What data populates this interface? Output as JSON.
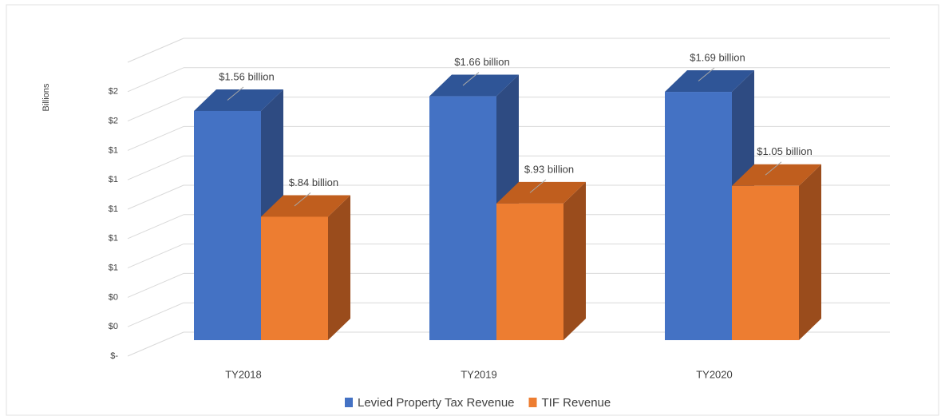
{
  "chart_data": {
    "type": "bar3d",
    "y_label": "Billions",
    "categories": [
      "TY2018",
      "TY2019",
      "TY2020"
    ],
    "series": [
      {
        "name": "Levied Property Tax Revenue",
        "color": "#4472c4",
        "side": "#2e4b82",
        "top": "#2f5597",
        "values": [
          1.56,
          1.66,
          1.69
        ],
        "value_labels": [
          "$1.56 billion",
          "$1.66 billion",
          "$1.69 billion"
        ]
      },
      {
        "name": "TIF Revenue",
        "color": "#ed7d31",
        "side": "#9a4c1c",
        "top": "#c05e1e",
        "values": [
          0.84,
          0.93,
          1.05
        ],
        "value_labels": [
          "$.84 billion",
          "$.93 billion",
          "$1.05 billion"
        ]
      }
    ],
    "ylim": [
      0,
      2
    ],
    "yticks": [
      {
        "value": 0,
        "label": "$-"
      },
      {
        "value": 0.2,
        "label": "$0"
      },
      {
        "value": 0.4,
        "label": "$0"
      },
      {
        "value": 0.6,
        "label": "$1"
      },
      {
        "value": 0.8,
        "label": "$1"
      },
      {
        "value": 1.0,
        "label": "$1"
      },
      {
        "value": 1.2,
        "label": "$1"
      },
      {
        "value": 1.4,
        "label": "$1"
      },
      {
        "value": 1.6,
        "label": "$2"
      },
      {
        "value": 1.8,
        "label": "$2"
      }
    ],
    "grid": true,
    "legend": "bottom"
  }
}
